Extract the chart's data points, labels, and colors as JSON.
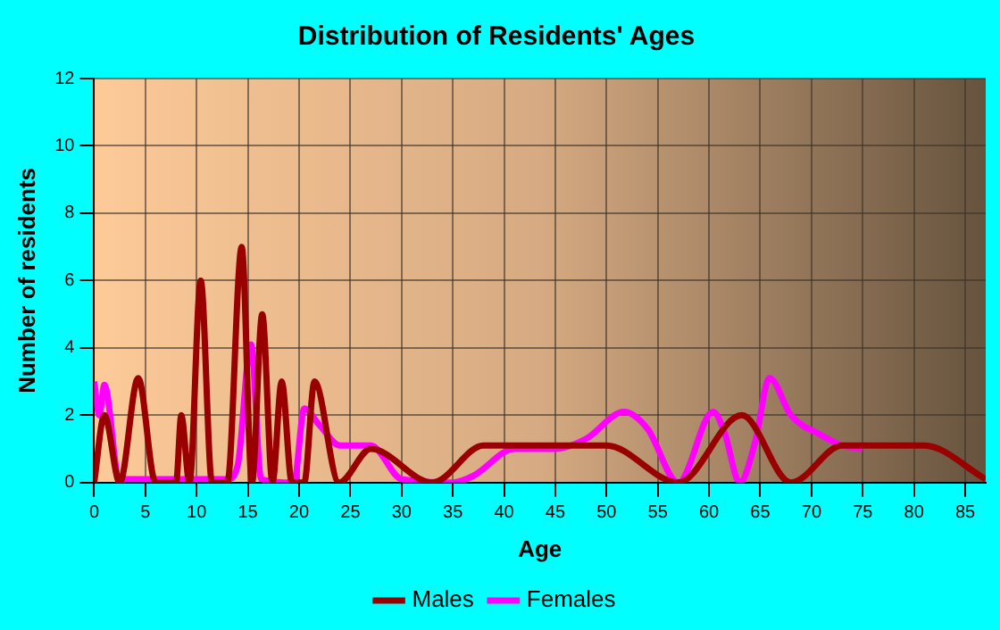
{
  "chart_data": {
    "type": "line",
    "title": "Distribution of Residents' Ages",
    "xlabel": "Age",
    "ylabel": "Number of residents",
    "xlim": [
      0,
      87
    ],
    "xticks": [
      0,
      5,
      10,
      15,
      20,
      25,
      30,
      35,
      40,
      45,
      50,
      55,
      60,
      65,
      70,
      75,
      80,
      85
    ],
    "ylim": [
      0,
      12
    ],
    "yticks": [
      0,
      2,
      4,
      6,
      8,
      10,
      12
    ],
    "grid": true,
    "legend": "bottom",
    "marker": "none",
    "series": [
      {
        "name": "Males",
        "color": "#990000",
        "x": [
          0,
          1,
          2.5,
          4.3,
          6,
          8,
          8.5,
          9.3,
          10.4,
          11.5,
          13,
          14.4,
          15.4,
          16.4,
          17.4,
          18.3,
          19.3,
          20.5,
          21.5,
          23.9,
          27,
          33,
          38,
          45,
          50,
          57,
          63.2,
          68,
          73,
          81,
          87
        ],
        "values": [
          0,
          2,
          0,
          3.1,
          0,
          0,
          2,
          0,
          6,
          0,
          0,
          7,
          0,
          5,
          0,
          3,
          0,
          0,
          3,
          0,
          1,
          0,
          1.1,
          1.1,
          1.1,
          0,
          2,
          0,
          1.1,
          1.1,
          0.1
        ]
      },
      {
        "name": "Females",
        "color": "#ff00ff",
        "x": [
          0,
          0.5,
          1,
          2.5,
          3,
          13,
          14,
          15.3,
          16.3,
          19.5,
          20.5,
          22,
          24,
          27,
          30,
          35,
          37,
          41,
          45,
          48,
          51.7,
          54,
          57,
          60.4,
          61.5,
          63,
          64.5,
          65.9,
          68,
          71,
          73,
          75
        ],
        "values": [
          3,
          2,
          2.9,
          0,
          0.1,
          0.1,
          0.5,
          4.1,
          0.1,
          0,
          2.2,
          1.7,
          1.1,
          1.1,
          0.1,
          0,
          0.2,
          1,
          1,
          1.3,
          2.1,
          1.6,
          0,
          2.1,
          1.5,
          0,
          1.2,
          3.1,
          2,
          1.4,
          1.1,
          1
        ]
      }
    ]
  }
}
